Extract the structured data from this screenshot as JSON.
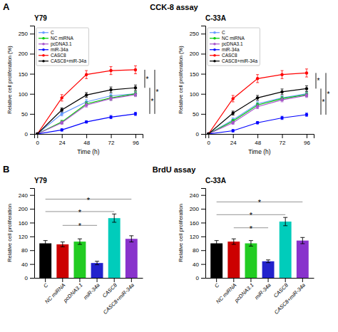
{
  "chart_data": [
    {
      "type": "line",
      "title": "Y79",
      "x_label": "Time (h)",
      "y_label": "Relative cell proliferation (%)",
      "x": [
        0,
        24,
        48,
        72,
        96
      ],
      "xlim": [
        -3,
        103
      ],
      "xticks": [
        0,
        24,
        48,
        72,
        96
      ],
      "ylim": [
        0,
        270
      ],
      "yticks": [
        0,
        50,
        100,
        150,
        200,
        250
      ],
      "grid": false,
      "legend": "upper left",
      "series": [
        {
          "name": "C",
          "color": "#6699ff",
          "values": [
            0,
            50,
            80,
            95,
            100
          ],
          "errors": [
            0,
            5,
            6,
            5,
            5
          ]
        },
        {
          "name": "NC miRNA",
          "color": "#00cc00",
          "values": [
            0,
            30,
            75,
            90,
            100
          ],
          "errors": [
            0,
            4,
            5,
            5,
            5
          ]
        },
        {
          "name": "pcDNA3.1",
          "color": "#aa55cc",
          "values": [
            0,
            28,
            72,
            88,
            98
          ],
          "errors": [
            0,
            4,
            5,
            5,
            5
          ]
        },
        {
          "name": "miR-34a",
          "color": "#0000ff",
          "values": [
            0,
            10,
            30,
            42,
            50
          ],
          "errors": [
            0,
            3,
            3,
            4,
            4
          ]
        },
        {
          "name": "CASC8",
          "color": "#ff0000",
          "values": [
            0,
            90,
            148,
            158,
            160
          ],
          "errors": [
            0,
            8,
            10,
            10,
            10
          ]
        },
        {
          "name": "CASC8+miR-34a",
          "color": "#000000",
          "values": [
            0,
            60,
            97,
            110,
            115
          ],
          "errors": [
            0,
            5,
            6,
            7,
            7
          ]
        }
      ],
      "annotations": [
        {
          "text": "A",
          "position": "top left"
        },
        {
          "text": "CCK-8 assay",
          "position": "top center"
        },
        {
          "text": "*",
          "y": [
            115,
            160
          ]
        },
        {
          "text": "*",
          "y": [
            50,
            115
          ]
        },
        {
          "text": "*",
          "y": [
            50,
            160
          ]
        }
      ]
    },
    {
      "type": "line",
      "title": "C-33A",
      "x_label": "Time (h)",
      "y_label": "Relative cell proliferation (%)",
      "x": [
        0,
        24,
        48,
        72,
        96
      ],
      "xlim": [
        -3,
        103
      ],
      "xticks": [
        0,
        24,
        48,
        72,
        96
      ],
      "ylim": [
        0,
        270
      ],
      "yticks": [
        0,
        50,
        100,
        150,
        200,
        250
      ],
      "grid": false,
      "legend": "upper left",
      "series": [
        {
          "name": "C",
          "color": "#6699ff",
          "values": [
            0,
            35,
            75,
            90,
            100
          ],
          "errors": [
            0,
            5,
            6,
            5,
            5
          ]
        },
        {
          "name": "NC miRNA",
          "color": "#00cc00",
          "values": [
            0,
            32,
            72,
            88,
            98
          ],
          "errors": [
            0,
            4,
            5,
            5,
            5
          ]
        },
        {
          "name": "pcDNA3.1",
          "color": "#aa55cc",
          "values": [
            0,
            28,
            68,
            85,
            96
          ],
          "errors": [
            0,
            4,
            5,
            5,
            5
          ]
        },
        {
          "name": "miR-34a",
          "color": "#0000ff",
          "values": [
            0,
            8,
            28,
            40,
            48
          ],
          "errors": [
            0,
            3,
            3,
            4,
            4
          ]
        },
        {
          "name": "CASC8",
          "color": "#ff0000",
          "values": [
            0,
            88,
            138,
            148,
            152
          ],
          "errors": [
            0,
            8,
            10,
            10,
            10
          ]
        },
        {
          "name": "CASC8+miR-34a",
          "color": "#000000",
          "values": [
            0,
            52,
            90,
            105,
            113
          ],
          "errors": [
            0,
            5,
            6,
            7,
            7
          ]
        }
      ],
      "annotations": [
        {
          "text": "*",
          "y": [
            113,
            152
          ]
        },
        {
          "text": "*",
          "y": [
            48,
            113
          ]
        },
        {
          "text": "*",
          "y": [
            48,
            152
          ]
        }
      ]
    },
    {
      "type": "bar",
      "title": "Y79",
      "y_label": "Relative cell proliferation",
      "categories": [
        "C",
        "NC miRNA",
        "pcDNA3.1",
        "miR-34a",
        "CASC8",
        "CASC8+miR-34a"
      ],
      "values": [
        100,
        97,
        105,
        43,
        173,
        113
      ],
      "errors": [
        8,
        7,
        8,
        5,
        12,
        9
      ],
      "colors": [
        "#000000",
        "#cc0000",
        "#22cc22",
        "#2222cc",
        "#00ccbb",
        "#8833cc"
      ],
      "ylim": [
        0,
        260
      ],
      "yticks": [
        0,
        40,
        80,
        120,
        160,
        200,
        240
      ],
      "grid": false,
      "annotations": [
        {
          "text": "B",
          "position": "top left"
        },
        {
          "text": "BrdU assay",
          "position": "top center"
        },
        {
          "text": "*",
          "x": [
            "NC miRNA",
            "miR-34a"
          ],
          "y": 152
        },
        {
          "text": "*",
          "x": [
            "C",
            "CASC8"
          ],
          "y": 192
        },
        {
          "text": "*",
          "x": [
            "C",
            "CASC8+miR-34a"
          ],
          "y": 228
        }
      ]
    },
    {
      "type": "bar",
      "title": "C-33A",
      "y_label": "Relative cell proliferation",
      "categories": [
        "C",
        "NC miRNA",
        "pcDNA3.1",
        "miR-34a",
        "CASC8",
        "CASC8+miR-34a"
      ],
      "values": [
        100,
        105,
        100,
        48,
        163,
        108
      ],
      "errors": [
        8,
        8,
        8,
        4,
        12,
        9
      ],
      "colors": [
        "#000000",
        "#cc0000",
        "#22cc22",
        "#2222cc",
        "#00ccbb",
        "#8833cc"
      ],
      "ylim": [
        0,
        260
      ],
      "yticks": [
        0,
        40,
        80,
        120,
        160,
        200,
        240
      ],
      "grid": false,
      "annotations": [
        {
          "text": "*",
          "x": [
            "NC miRNA",
            "miR-34a"
          ],
          "y": 145
        },
        {
          "text": "*",
          "x": [
            "C",
            "CASC8"
          ],
          "y": 183
        },
        {
          "text": "*",
          "x": [
            "C",
            "CASC8+miR-34a"
          ],
          "y": 220
        }
      ]
    }
  ]
}
